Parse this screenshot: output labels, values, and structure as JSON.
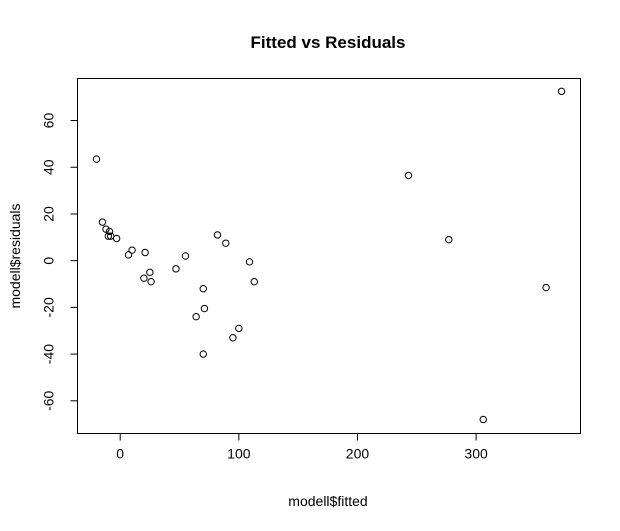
{
  "chart_data": {
    "type": "scatter",
    "title": "Fitted vs Residuals",
    "xlabel": "modell$fitted",
    "ylabel": "modell$residuals",
    "xlim": [
      -36,
      388
    ],
    "ylim": [
      -74,
      78
    ],
    "xticks": [
      0,
      100,
      200,
      300
    ],
    "yticks": [
      -60,
      -40,
      -20,
      0,
      20,
      40,
      60
    ],
    "grid": false,
    "points": [
      {
        "x": -20,
        "y": 43.5
      },
      {
        "x": -15,
        "y": 16.5
      },
      {
        "x": -12,
        "y": 13.5
      },
      {
        "x": -9,
        "y": 12.5
      },
      {
        "x": -10,
        "y": 10.5
      },
      {
        "x": -8,
        "y": 10.5
      },
      {
        "x": -3,
        "y": 9.5
      },
      {
        "x": 7,
        "y": 2.5
      },
      {
        "x": 10,
        "y": 4.5
      },
      {
        "x": 20,
        "y": -7.5
      },
      {
        "x": 21,
        "y": 3.5
      },
      {
        "x": 25,
        "y": -5
      },
      {
        "x": 26,
        "y": -9
      },
      {
        "x": 47,
        "y": -3.5
      },
      {
        "x": 55,
        "y": 2
      },
      {
        "x": 64,
        "y": -24
      },
      {
        "x": 70,
        "y": -12
      },
      {
        "x": 71,
        "y": -20.5
      },
      {
        "x": 70,
        "y": -40
      },
      {
        "x": 82,
        "y": 11
      },
      {
        "x": 89,
        "y": 7.5
      },
      {
        "x": 95,
        "y": -33
      },
      {
        "x": 100,
        "y": -29
      },
      {
        "x": 109,
        "y": -0.5
      },
      {
        "x": 113,
        "y": -9
      },
      {
        "x": 243,
        "y": 36.5
      },
      {
        "x": 277,
        "y": 9
      },
      {
        "x": 306,
        "y": -68
      },
      {
        "x": 359,
        "y": -11.5
      },
      {
        "x": 372,
        "y": 72.5
      }
    ]
  }
}
